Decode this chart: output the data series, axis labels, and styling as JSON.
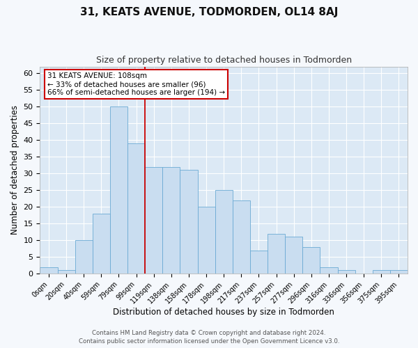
{
  "title": "31, KEATS AVENUE, TODMORDEN, OL14 8AJ",
  "subtitle": "Size of property relative to detached houses in Todmorden",
  "xlabel": "Distribution of detached houses by size in Todmorden",
  "ylabel": "Number of detached properties",
  "footer_line1": "Contains HM Land Registry data © Crown copyright and database right 2024.",
  "footer_line2": "Contains public sector information licensed under the Open Government Licence v3.0.",
  "bar_labels": [
    "0sqm",
    "20sqm",
    "40sqm",
    "59sqm",
    "79sqm",
    "99sqm",
    "119sqm",
    "138sqm",
    "158sqm",
    "178sqm",
    "198sqm",
    "217sqm",
    "237sqm",
    "257sqm",
    "277sqm",
    "296sqm",
    "316sqm",
    "336sqm",
    "356sqm",
    "375sqm",
    "395sqm"
  ],
  "bar_values": [
    2,
    1,
    10,
    18,
    50,
    39,
    32,
    32,
    31,
    20,
    25,
    22,
    7,
    12,
    11,
    8,
    2,
    1,
    0,
    1,
    1
  ],
  "bar_color": "#c9ddf0",
  "bar_edge_color": "#6aaad4",
  "red_line_x": 5.5,
  "annotation_text_line1": "31 KEATS AVENUE: 108sqm",
  "annotation_text_line2": "← 33% of detached houses are smaller (96)",
  "annotation_text_line3": "66% of semi-detached houses are larger (194) →",
  "ylim": [
    0,
    62
  ],
  "yticks": [
    0,
    5,
    10,
    15,
    20,
    25,
    30,
    35,
    40,
    45,
    50,
    55,
    60
  ],
  "background_color": "#dce9f5",
  "grid_color": "#ffffff",
  "annotation_box_color": "#ffffff",
  "annotation_box_edge": "#cc0000",
  "red_line_color": "#cc0000",
  "fig_bg_color": "#f5f8fc"
}
